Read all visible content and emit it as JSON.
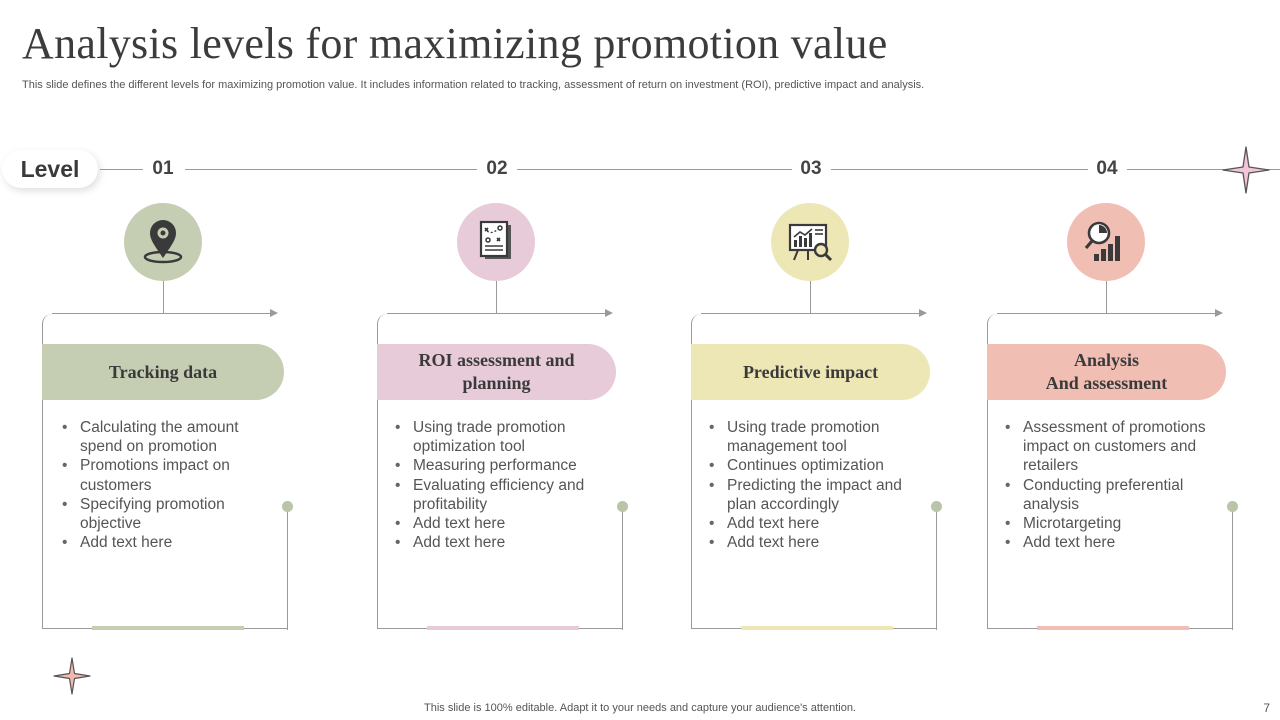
{
  "title": "Analysis levels for maximizing promotion value",
  "subtitle": "This slide defines the different levels for maximizing promotion value. It includes information related to tracking, assessment of return on investment (ROI),  predictive impact and analysis.",
  "level_label": "Level",
  "levels": [
    {
      "number": "01",
      "icon": "location-pin-icon",
      "color": "#c5cdb3",
      "header": [
        "Tracking data"
      ],
      "bullets": [
        "Calculating the amount spend on promotion",
        "Promotions impact on customers",
        "Specifying promotion objective",
        "Add text here"
      ]
    },
    {
      "number": "02",
      "icon": "strategy-document-icon",
      "color": "#e7cbd8",
      "header": [
        "ROI assessment and",
        "planning"
      ],
      "bullets": [
        "Using trade promotion optimization tool",
        "Measuring performance",
        "Evaluating efficiency and profitability",
        "Add text here",
        "Add text here"
      ]
    },
    {
      "number": "03",
      "icon": "presentation-chart-icon",
      "color": "#ede6b5",
      "header": [
        "Predictive impact"
      ],
      "bullets": [
        "Using trade promotion management tool",
        "Continues optimization",
        "Predicting the impact and plan accordingly",
        "Add text here",
        "Add text here"
      ]
    },
    {
      "number": "04",
      "icon": "analytics-magnifier-icon",
      "color": "#f0beb3",
      "header": [
        "Analysis",
        "And assessment"
      ],
      "bullets": [
        "Assessment of promotions impact on customers and retailers",
        "Conducting preferential analysis",
        "Microtargeting",
        "Add text here"
      ]
    }
  ],
  "footer": "This slide is 100% editable. Adapt it to your needs and capture your audience's attention.",
  "page_number": "7",
  "colors": {
    "line": "#9a9a9a",
    "dot": "#b9c4a9",
    "star_top_right": "#f0c6d8",
    "star_bottom_left": "#f2b9ac"
  }
}
